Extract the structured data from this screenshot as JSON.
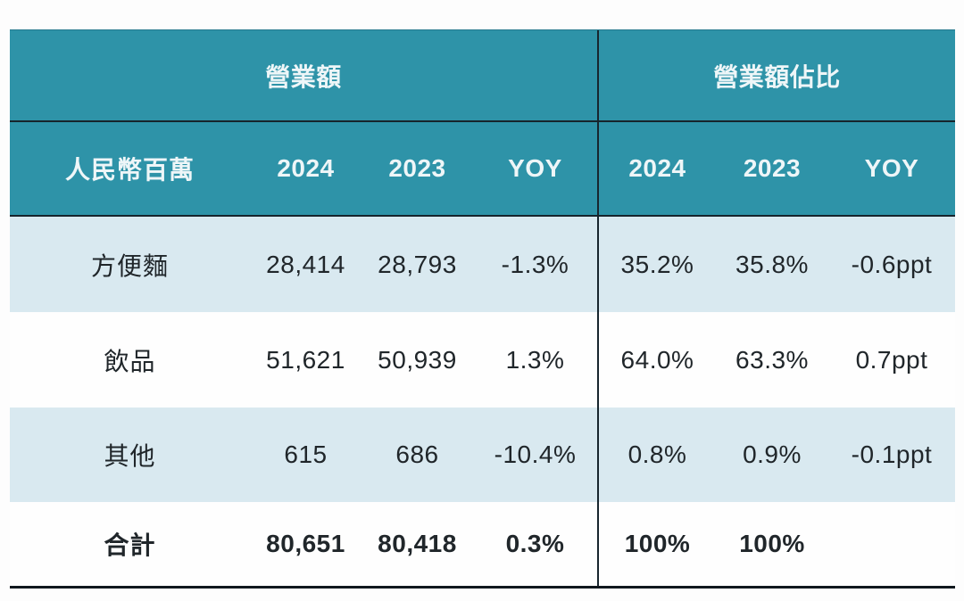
{
  "table": {
    "group_headers": {
      "revenue": "營業額",
      "share": "營業額佔比"
    },
    "header": {
      "row_label": "人民幣百萬",
      "left_2024": "2024",
      "left_2023": "2023",
      "left_yoy": "YOY",
      "right_2024": "2024",
      "right_2023": "2023",
      "right_yoy": "YOY"
    },
    "rows": [
      {
        "label": "方便麵",
        "v0": "28,414",
        "v1": "28,793",
        "v2": "-1.3%",
        "v3": "35.2%",
        "v4": "35.8%",
        "v5": "-0.6ppt"
      },
      {
        "label": "飲品",
        "v0": "51,621",
        "v1": "50,939",
        "v2": "1.3%",
        "v3": "64.0%",
        "v4": "63.3%",
        "v5": "0.7ppt"
      },
      {
        "label": "其他",
        "v0": "615",
        "v1": "686",
        "v2": "-10.4%",
        "v3": "0.8%",
        "v4": "0.9%",
        "v5": "-0.1ppt"
      },
      {
        "label": "合計",
        "v0": "80,651",
        "v1": "80,418",
        "v2": "0.3%",
        "v3": "100%",
        "v4": "100%",
        "v5": ""
      }
    ],
    "colors": {
      "header_teal": "#2e93a8",
      "row_alt_blue": "#d9e9f0",
      "row_white": "#fefefe",
      "line_dark": "#16242c",
      "header_text": "#eef6f8",
      "body_text": "#20262a"
    }
  },
  "chart_data": {
    "type": "table",
    "column_groups": [
      "營業額",
      "營業額佔比"
    ],
    "columns": [
      "人民幣百萬",
      "2024",
      "2023",
      "YOY",
      "2024",
      "2023",
      "YOY"
    ],
    "rows": [
      [
        "方便麵",
        "28,414",
        "28,793",
        "-1.3%",
        "35.2%",
        "35.8%",
        "-0.6ppt"
      ],
      [
        "飲品",
        "51,621",
        "50,939",
        "1.3%",
        "64.0%",
        "63.3%",
        "0.7ppt"
      ],
      [
        "其他",
        "615",
        "686",
        "-10.4%",
        "0.8%",
        "0.9%",
        "-0.1ppt"
      ],
      [
        "合計",
        "80,651",
        "80,418",
        "0.3%",
        "100%",
        "100%",
        ""
      ]
    ]
  }
}
